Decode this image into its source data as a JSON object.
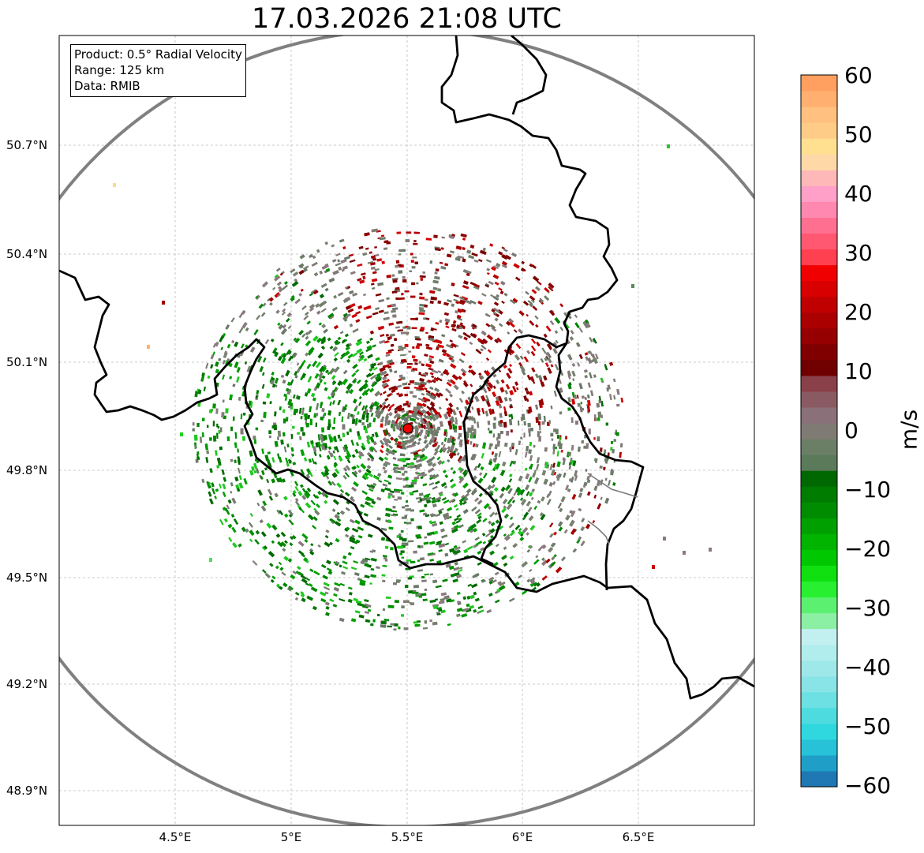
{
  "title": "17.03.2026 21:08 UTC",
  "info_box": {
    "product": "Product: 0.5° Radial Velocity",
    "range": "Range: 125 km",
    "data": "Data: RMIB"
  },
  "map": {
    "lon_range": [
      4.0,
      7.0
    ],
    "lat_range": [
      48.8,
      51.0
    ],
    "radar_site": {
      "lon": 5.505,
      "lat": 49.915,
      "label": "radar-site"
    },
    "range_ring_km": 125,
    "x_ticks": [
      "4.5°E",
      "5°E",
      "5.5°E",
      "6°E",
      "6.5°E"
    ],
    "y_ticks": [
      "50.7°N",
      "50.4°N",
      "50.1°N",
      "49.8°N",
      "49.5°N",
      "49.2°N",
      "48.9°N"
    ]
  },
  "colorbar": {
    "label": "m/s",
    "min": -60,
    "max": 60,
    "ticks": [
      "60",
      "50",
      "40",
      "30",
      "20",
      "10",
      "0",
      "−10",
      "−20",
      "−30",
      "−40",
      "−50",
      "−60"
    ],
    "colors": [
      "#1f77b4",
      "#1f9fc8",
      "#27c2d8",
      "#2fd8de",
      "#4ddbe0",
      "#6ce0e2",
      "#88e4e6",
      "#9fe8ea",
      "#b2eded",
      "#c2f0f0",
      "#8cf0a4",
      "#5cf070",
      "#28f030",
      "#10e010",
      "#00c800",
      "#00b400",
      "#00a000",
      "#008c00",
      "#007c00",
      "#006800",
      "#5a7a5a",
      "#6a7f66",
      "#807a74",
      "#8a7078",
      "#8a5a62",
      "#8a4048",
      "#700000",
      "#800000",
      "#960000",
      "#aa0000",
      "#c00000",
      "#d80000",
      "#f00000",
      "#ff4050",
      "#ff5870",
      "#ff7090",
      "#ff88b0",
      "#ffa0c8",
      "#ffb8b8",
      "#ffd8a8",
      "#ffe090",
      "#ffcc88",
      "#ffc080",
      "#ffb070",
      "#ffa060"
    ]
  }
}
